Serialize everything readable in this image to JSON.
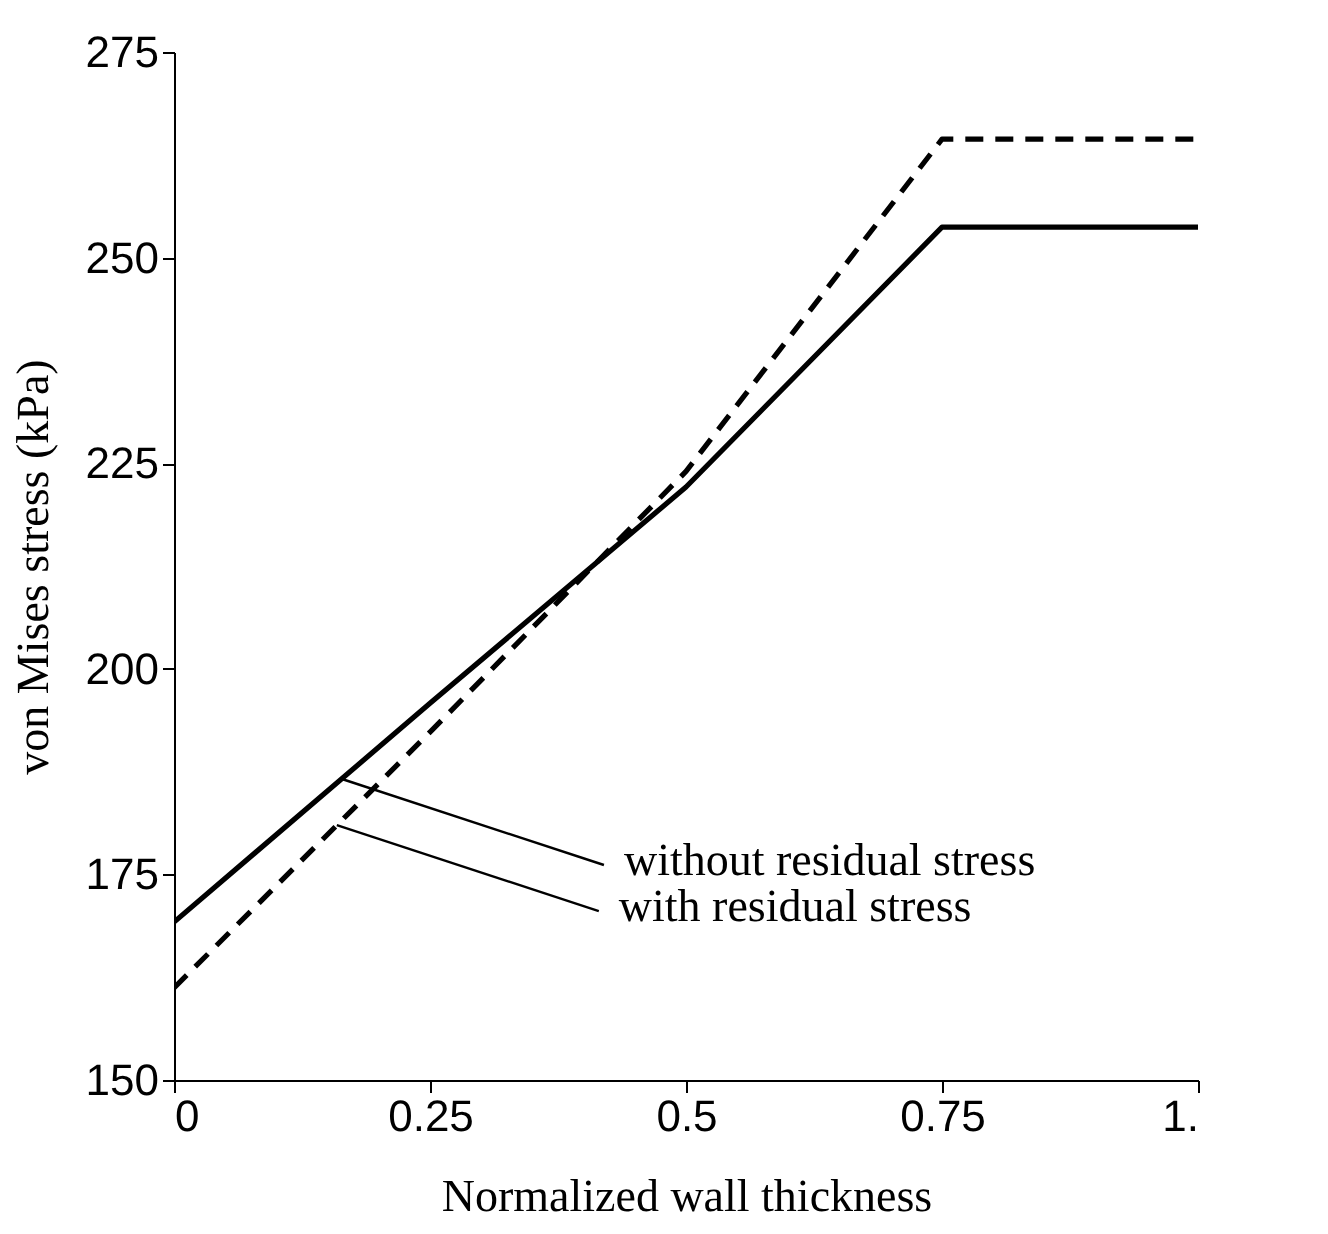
{
  "chart_data": {
    "type": "line",
    "xlabel": "Normalized wall thickness",
    "ylabel": "von Mises stress (kPa)",
    "xlim": [
      0,
      1
    ],
    "xticks": [
      0,
      0.25,
      0.5,
      0.75,
      {
        "value": 1,
        "label": "1."
      }
    ],
    "ylim": [
      150,
      275
    ],
    "yticks": [
      150,
      175,
      200,
      225,
      250,
      275
    ],
    "grid": false,
    "marker": "none",
    "series": [
      {
        "color": "#000000",
        "line_style": "solid",
        "x": [
          0,
          0.25,
          0.5,
          0.75,
          1
        ],
        "values": [
          169.2,
          195.8,
          222.1,
          253.7,
          253.7
        ]
      },
      {
        "color": "#000000",
        "line_style": "dashed",
        "x": [
          0,
          0.25,
          0.5,
          0.75,
          1
        ],
        "values": [
          161.2,
          192.3,
          224.0,
          264.4,
          264.4
        ]
      }
    ],
    "annotations": [
      {
        "text": "without residual stress",
        "x": 0.164,
        "y": 186.6
      },
      {
        "text": "with residual stress",
        "x": 0.159,
        "y": 181.0
      }
    ]
  }
}
